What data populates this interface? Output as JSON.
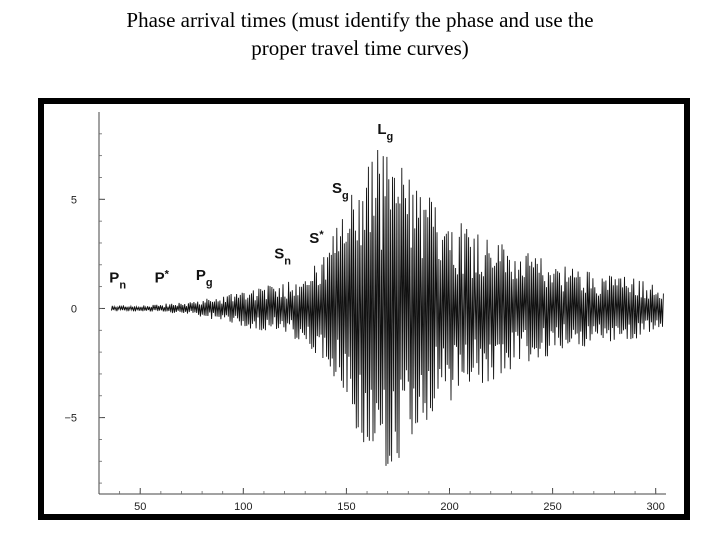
{
  "slide": {
    "title": "Phase arrival times (must identify the phase and use the proper travel time curves)"
  },
  "chart_data": {
    "type": "line",
    "title": "",
    "xlabel": "",
    "ylabel": "",
    "xlim": [
      30,
      305
    ],
    "ylim": [
      -8.5,
      9
    ],
    "grid": false,
    "x_ticks": [
      50,
      100,
      150,
      200,
      250,
      300
    ],
    "y_ticks": [
      5,
      0,
      -5
    ],
    "x_tick_labels": [
      "50",
      "100",
      "150",
      "200",
      "250",
      "300"
    ],
    "y_tick_labels": [
      "5",
      "0",
      "−5"
    ],
    "phases": [
      {
        "main": "P",
        "sub": "n",
        "star": "",
        "x": 35,
        "y": 1.2
      },
      {
        "main": "P",
        "sub": "",
        "star": "*",
        "x": 57,
        "y": 1.2
      },
      {
        "main": "P",
        "sub": "g",
        "star": "",
        "x": 77,
        "y": 1.3
      },
      {
        "main": "S",
        "sub": "n",
        "star": "",
        "x": 115,
        "y": 2.3
      },
      {
        "main": "S",
        "sub": "",
        "star": "*",
        "x": 132,
        "y": 3.0
      },
      {
        "main": "S",
        "sub": "g",
        "star": "",
        "x": 143,
        "y": 5.3
      },
      {
        "main": "L",
        "sub": "g",
        "star": "",
        "x": 165,
        "y": 8.0
      }
    ],
    "series": [
      {
        "envelope": [
          [
            36,
            0.1
          ],
          [
            55,
            0.15
          ],
          [
            70,
            0.25
          ],
          [
            88,
            0.5
          ],
          [
            100,
            0.9
          ],
          [
            115,
            1.1
          ],
          [
            130,
            1.6
          ],
          [
            140,
            2.5
          ],
          [
            148,
            4.5
          ],
          [
            155,
            6.0
          ],
          [
            165,
            7.5
          ],
          [
            175,
            7.0
          ],
          [
            185,
            5.5
          ],
          [
            200,
            4.5
          ],
          [
            215,
            3.6
          ],
          [
            235,
            2.6
          ],
          [
            255,
            2.0
          ],
          [
            275,
            1.6
          ],
          [
            290,
            1.4
          ],
          [
            304,
            0.9
          ]
        ]
      }
    ]
  }
}
